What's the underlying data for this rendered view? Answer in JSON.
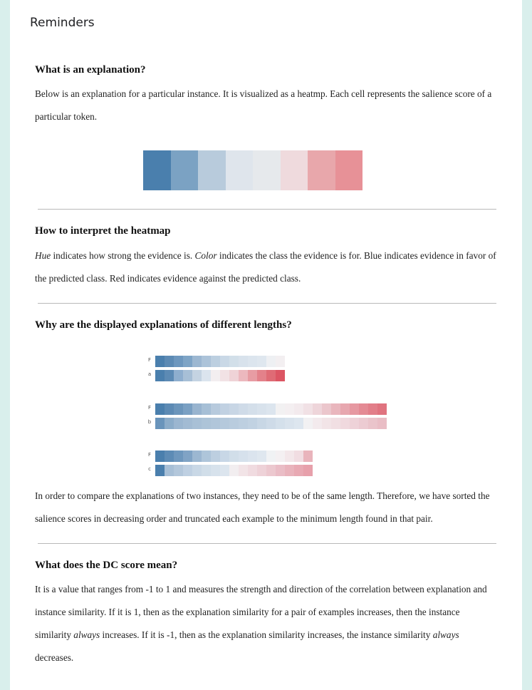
{
  "header": {
    "title": "Reminders"
  },
  "sections": [
    {
      "heading": "What is an explanation?",
      "body": "Below is an explanation for a particular instance. It is visualized as a heatmp. Each cell represents the salience score of a particular token."
    },
    {
      "heading": "How to interpret the heatmap",
      "body_parts": [
        {
          "text": "Hue",
          "em": true
        },
        {
          "text": " indicates how strong the evidence is. ",
          "em": false
        },
        {
          "text": "Color",
          "em": true
        },
        {
          "text": " indicates the class the evidence is for. Blue indicates evidence in favor of the predicted class. Red indicates evidence against the predicted class.",
          "em": false
        }
      ]
    },
    {
      "heading": "Why are the displayed explanations of different lengths?",
      "body": "In order to compare the explanations of two instances, they need to be of the same length. Therefore, we have sorted the salience scores in decreasing order and truncated each example to the minimum length found in that pair."
    },
    {
      "heading": "What does the DC score mean?",
      "body_parts": [
        {
          "text": "It is a value that ranges from -1 to 1 and measures the strength and direction of the correlation between explanation and instance similarity. If it is 1, then as the explanation similarity for a pair of examples increases, then the instance similarity ",
          "em": false
        },
        {
          "text": "always",
          "em": true
        },
        {
          "text": " increases. If it is -1, then as the explanation similarity increases, the instance similarity ",
          "em": false
        },
        {
          "text": "always",
          "em": true
        },
        {
          "text": " decreases.",
          "em": false
        }
      ]
    }
  ],
  "heatmap_example": {
    "colors": [
      "#4a7fad",
      "#7ba2c3",
      "#b8cbdc",
      "#dfe5ec",
      "#e6e9ec",
      "#efdadd",
      "#e8a7ab",
      "#e79197"
    ]
  },
  "example_pairs": [
    {
      "rows": [
        {
          "label": "F",
          "colors": [
            "#4a7fad",
            "#5c8ab4",
            "#6d97be",
            "#7ea4c6",
            "#9cb7d1",
            "#acc3d9",
            "#bccfe0",
            "#c9d8e6",
            "#d2dfe9",
            "#d8e2ec",
            "#dce5ee",
            "#dfe7ef",
            "#eef0f3",
            "#f3eff1"
          ]
        },
        {
          "label": "a",
          "colors": [
            "#4a7fad",
            "#5c8ab4",
            "#8eaece",
            "#a7bfd6",
            "#c4d3e2",
            "#dbe4ee",
            "#f3eef0",
            "#f2e2e5",
            "#efd3d7",
            "#ecb8be",
            "#e79ca3",
            "#e3818a",
            "#df6b75",
            "#dc5563"
          ]
        }
      ]
    },
    {
      "rows": [
        {
          "label": "F",
          "colors": [
            "#4a7fad",
            "#5c8ab4",
            "#6b95bb",
            "#7aa0c3",
            "#98b4cf",
            "#a6bfd6",
            "#b7cadd",
            "#c1d1e2",
            "#c8d6e5",
            "#cfdbe8",
            "#d4dfea",
            "#d8e2ec",
            "#dce5ee",
            "#f2f1f2",
            "#f4eff1",
            "#f3eaed",
            "#f1e1e5",
            "#eed5da",
            "#ebc6cc",
            "#e9b6bd",
            "#e7a7af",
            "#e698a1",
            "#e48a94",
            "#e27e89",
            "#e0737f"
          ]
        },
        {
          "label": "b",
          "colors": [
            "#6994bb",
            "#8bacc9",
            "#9bb6d0",
            "#a2bbd3",
            "#a8c0d6",
            "#adc4d8",
            "#b1c6da",
            "#b5c9dc",
            "#b9ccde",
            "#bdcfe0",
            "#c1d2e2",
            "#c8d7e5",
            "#cedbe8",
            "#d4e0eb",
            "#d9e3ed",
            "#dde6ef",
            "#f2f1f3",
            "#f3eaed",
            "#f2e4e7",
            "#f1dfe3",
            "#f0d9de",
            "#eed2d8",
            "#eccbd2",
            "#eac4cb",
            "#e9bdc5"
          ]
        }
      ]
    },
    {
      "rows": [
        {
          "label": "F",
          "colors": [
            "#4a7fad",
            "#5d8bb5",
            "#6e97bd",
            "#80a3c5",
            "#9cb7d1",
            "#aec5da",
            "#bdcfe0",
            "#c8d7e6",
            "#d1dee9",
            "#d6e1ec",
            "#dbe4ee",
            "#dfe7ef",
            "#f0f2f4",
            "#f4f0f2",
            "#f3e7ea",
            "#f1dde2",
            "#e9b4bc"
          ]
        },
        {
          "label": "c",
          "colors": [
            "#4a7fad",
            "#a7bfd6",
            "#b3c7db",
            "#bfd0e2",
            "#c9d8e6",
            "#d1dee9",
            "#d7e2ec",
            "#dce5ee",
            "#f2eef0",
            "#f2e4e7",
            "#f0dbe0",
            "#eed2d8",
            "#ecc8cf",
            "#eabdc6",
            "#e9b3bc",
            "#e8a9b3",
            "#e7a0ab"
          ]
        }
      ]
    }
  ]
}
